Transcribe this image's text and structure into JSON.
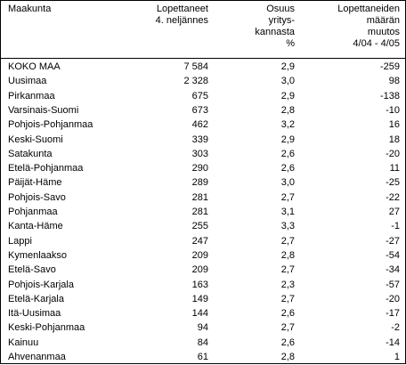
{
  "table": {
    "headers": [
      [
        "Maakunta"
      ],
      [
        "Lopettaneet",
        "4. neljännes"
      ],
      [
        "Osuus",
        "yritys-",
        "kannasta",
        "%"
      ],
      [
        "Lopettaneiden",
        "määrän",
        "muutos",
        "4/04 - 4/05"
      ]
    ],
    "rows": [
      [
        "KOKO MAA",
        "7 584",
        "2,9",
        "-259"
      ],
      [
        "Uusimaa",
        "2 328",
        "3,0",
        "98"
      ],
      [
        "Pirkanmaa",
        "675",
        "2,9",
        "-138"
      ],
      [
        "Varsinais-Suomi",
        "673",
        "2,8",
        "-10"
      ],
      [
        "Pohjois-Pohjanmaa",
        "462",
        "3,2",
        "16"
      ],
      [
        "Keski-Suomi",
        "339",
        "2,9",
        "18"
      ],
      [
        "Satakunta",
        "303",
        "2,6",
        "-20"
      ],
      [
        "Etelä-Pohjanmaa",
        "290",
        "2,6",
        "11"
      ],
      [
        "Päijät-Häme",
        "289",
        "3,0",
        "-25"
      ],
      [
        "Pohjois-Savo",
        "281",
        "2,7",
        "-22"
      ],
      [
        "Pohjanmaa",
        "281",
        "3,1",
        "27"
      ],
      [
        "Kanta-Häme",
        "255",
        "3,3",
        "-1"
      ],
      [
        "Lappi",
        "247",
        "2,7",
        "-27"
      ],
      [
        "Kymenlaakso",
        "209",
        "2,8",
        "-54"
      ],
      [
        "Etelä-Savo",
        "209",
        "2,7",
        "-34"
      ],
      [
        "Pohjois-Karjala",
        "163",
        "2,3",
        "-57"
      ],
      [
        "Etelä-Karjala",
        "149",
        "2,7",
        "-20"
      ],
      [
        "Itä-Uusimaa",
        "144",
        "2,6",
        "-17"
      ],
      [
        "Keski-Pohjanmaa",
        "94",
        "2,7",
        "-2"
      ],
      [
        "Kainuu",
        "84",
        "2,6",
        "-14"
      ],
      [
        "Ahvenanmaa",
        "61",
        "2,8",
        "1"
      ]
    ]
  }
}
